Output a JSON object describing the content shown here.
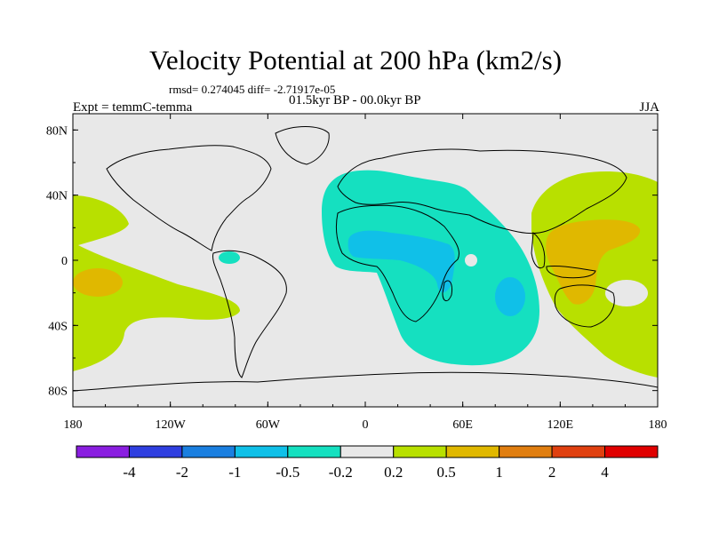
{
  "chart_data": {
    "type": "heatmap",
    "title": "Velocity Potential at 200 hPa (km2/s)",
    "stats_line": "rmsd= 0.274045 diff= -2.71917e-05",
    "period": "01.5kyr BP - 00.0kyr BP",
    "experiment": "Expt = temmC-temma",
    "season": "JJA",
    "x_ticks": [
      "180",
      "120W",
      "60W",
      "0",
      "60E",
      "120E",
      "180"
    ],
    "y_ticks": [
      "80N",
      "40N",
      "0",
      "40S",
      "80S"
    ],
    "xlim": [
      -180,
      180
    ],
    "ylim": [
      -90,
      90
    ],
    "colorbar": {
      "labels": [
        "-4",
        "-2",
        "-1",
        "-0.5",
        "-0.2",
        "0.2",
        "0.5",
        "1",
        "2",
        "4"
      ],
      "colors": [
        "#8a1ee0",
        "#2f3fe0",
        "#1a7fe0",
        "#10c0e8",
        "#15e0c0",
        "#e8e8e8",
        "#b8e000",
        "#e0b800",
        "#e07e10",
        "#e04010",
        "#e00000"
      ]
    },
    "regions": [
      {
        "name": "west-pacific-positive",
        "level": "0.2 to 0.5",
        "lon_range": [
          120,
          180
        ],
        "lat_range": [
          -55,
          50
        ]
      },
      {
        "name": "west-pacific-core",
        "level": "0.5 to 1",
        "lon_range": [
          125,
          160
        ],
        "lat_range": [
          -20,
          25
        ]
      },
      {
        "name": "central-pacific-positive",
        "level": "0.2 to 0.5",
        "lon_range": [
          -180,
          -110
        ],
        "lat_range": [
          -45,
          40
        ]
      },
      {
        "name": "africa-indian-negative",
        "level": "-0.5 to -0.2",
        "lon_range": [
          -25,
          95
        ],
        "lat_range": [
          -65,
          55
        ]
      },
      {
        "name": "east-africa-core",
        "level": "-1 to -0.5",
        "lon_range": [
          -5,
          50
        ],
        "lat_range": [
          -20,
          15
        ]
      },
      {
        "name": "south-indian-core",
        "level": "-1 to -0.5",
        "lon_range": [
          75,
          90
        ],
        "lat_range": [
          -30,
          -15
        ]
      }
    ]
  }
}
